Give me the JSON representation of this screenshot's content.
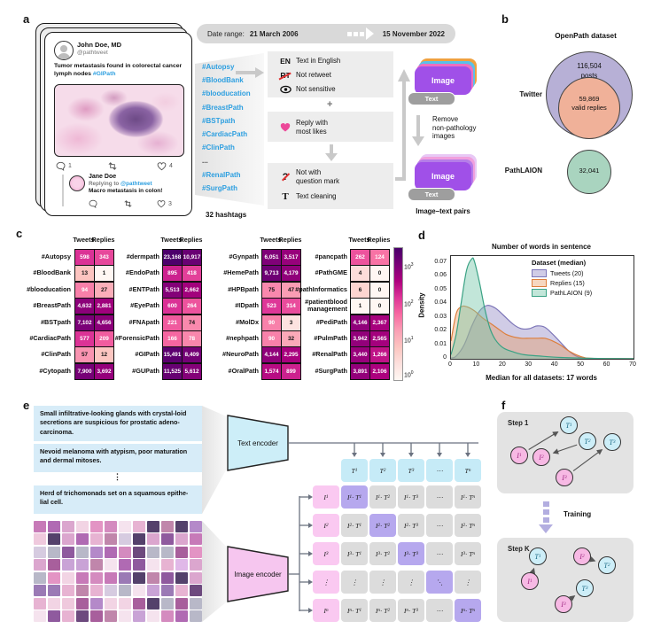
{
  "panels": {
    "a": "a",
    "b": "b",
    "c": "c",
    "d": "d",
    "e": "e",
    "f": "f"
  },
  "colors": {
    "accent_blue": "#2d9fe0",
    "image_purple": "#a050e8",
    "text_gray": "#9e9e9e",
    "venn_twitter": "#b7b0d6",
    "venn_replies": "#f0b199",
    "venn_pathlaion": "#a9d4bf",
    "heart_pink": "#ec4899",
    "encoder_text": "#cdeef8",
    "encoder_image": "#f6c6ef",
    "matrix_diag": "#b6a8ee",
    "matrix_cell": "#dcdcdc",
    "matrix_col": "#c6ebf7",
    "matrix_row": "#fac9f1"
  },
  "panel_a": {
    "tweet": {
      "name": "John Doe, MD",
      "handle": "@pathtweet",
      "text_before": "Tumor metastasis found in colorectal cancer lymph nodes ",
      "text_tag": "#GIPath",
      "comments": "1",
      "likes": "4"
    },
    "reply": {
      "name": "Jane Doe",
      "replying": "Replying to ",
      "handle": "@pathtweet",
      "text": "Macro metastasis in colon!",
      "likes": "3"
    },
    "date": {
      "label": "Date range:",
      "start": "21 March 2006",
      "end": "15 November 2022"
    },
    "hashtags": [
      "#Autopsy",
      "#BloodBank",
      "#blooducation",
      "#BreastPath",
      "#BSTpath",
      "#CardiacPath",
      "#ClinPath",
      "...",
      "#RenalPath",
      "#SurgPath"
    ],
    "hashtags_caption": "32 hashtags",
    "filter_box1": [
      {
        "icon": "en",
        "label": "Text in English"
      },
      {
        "icon": "rt",
        "label": "Not retweet"
      },
      {
        "icon": "eye",
        "label": "Not sensitive"
      }
    ],
    "plus": "+",
    "filter_box2": {
      "icon": "heart",
      "label": "Reply with\nmost likes"
    },
    "filter_box3": [
      {
        "icon": "q",
        "label": "Not with\nquestion mark"
      },
      {
        "icon": "t",
        "label": "Text cleaning"
      }
    ],
    "stack_image_label": "Image",
    "stack_text_label": "Text",
    "remove_label": "Remove\nnon-pathology\nimages",
    "pairs_label": "Image–text pairs"
  },
  "panel_b": {
    "title": "OpenPath dataset",
    "twitter_label": "Twitter",
    "outer_value": "116,504",
    "outer_unit": "posts",
    "inner_value": "59,869",
    "inner_unit": "valid replies",
    "pathlaion_label": "PathLAION",
    "pathlaion_value": "32,041"
  },
  "panel_c": {
    "header_tweets": "Tweets",
    "header_replies": "Replies",
    "colorbar_exponents": [
      3,
      2,
      1,
      0
    ],
    "tables": [
      [
        {
          "tag": "#Autopsy",
          "tweets": "598",
          "replies": "343"
        },
        {
          "tag": "#BloodBank",
          "tweets": "13",
          "replies": "1"
        },
        {
          "tag": "#blooducation",
          "tweets": "94",
          "replies": "27"
        },
        {
          "tag": "#BreastPath",
          "tweets": "4,632",
          "replies": "2,881"
        },
        {
          "tag": "#BSTpath",
          "tweets": "7,102",
          "replies": "4,656"
        },
        {
          "tag": "#CardiacPath",
          "tweets": "577",
          "replies": "209"
        },
        {
          "tag": "#ClinPath",
          "tweets": "57",
          "replies": "12"
        },
        {
          "tag": "#Cytopath",
          "tweets": "7,900",
          "replies": "3,692"
        }
      ],
      [
        {
          "tag": "#dermpath",
          "tweets": "23,168",
          "replies": "10,917"
        },
        {
          "tag": "#EndoPath",
          "tweets": "895",
          "replies": "418"
        },
        {
          "tag": "#ENTPath",
          "tweets": "5,513",
          "replies": "2,662"
        },
        {
          "tag": "#EyePath",
          "tweets": "600",
          "replies": "264"
        },
        {
          "tag": "#FNApath",
          "tweets": "221",
          "replies": "74"
        },
        {
          "tag": "#ForensicPath",
          "tweets": "166",
          "replies": "78"
        },
        {
          "tag": "#GIPath",
          "tweets": "15,491",
          "replies": "8,409"
        },
        {
          "tag": "#GUPath",
          "tweets": "11,525",
          "replies": "5,612"
        }
      ],
      [
        {
          "tag": "#Gynpath",
          "tweets": "6,051",
          "replies": "3,517"
        },
        {
          "tag": "#HemePath",
          "tweets": "9,713",
          "replies": "4,179"
        },
        {
          "tag": "#HPBpath",
          "tweets": "75",
          "replies": "47"
        },
        {
          "tag": "#IDpath",
          "tweets": "523",
          "replies": "314"
        },
        {
          "tag": "#MolDx",
          "tweets": "90",
          "replies": "3"
        },
        {
          "tag": "#nephpath",
          "tweets": "90",
          "replies": "32"
        },
        {
          "tag": "#NeuroPath",
          "tweets": "4,144",
          "replies": "2,295"
        },
        {
          "tag": "#OralPath",
          "tweets": "1,574",
          "replies": "899"
        }
      ],
      [
        {
          "tag": "#pancpath",
          "tweets": "262",
          "replies": "124"
        },
        {
          "tag": "#PathGME",
          "tweets": "4",
          "replies": "0"
        },
        {
          "tag": "#pathInformatics",
          "tweets": "6",
          "replies": "0"
        },
        {
          "tag": "#patientblood management",
          "tweets": "1",
          "replies": "0"
        },
        {
          "tag": "#PediPath",
          "tweets": "4,146",
          "replies": "2,367"
        },
        {
          "tag": "#PulmPath",
          "tweets": "3,942",
          "replies": "2,565"
        },
        {
          "tag": "#RenalPath",
          "tweets": "3,440",
          "replies": "1,266"
        },
        {
          "tag": "#SurgPath",
          "tweets": "3,891",
          "replies": "2,106"
        }
      ]
    ]
  },
  "chart_data": {
    "type": "area",
    "title": "Number of words in sentence",
    "xlabel": "Median for all datasets: 17 words",
    "ylabel": "Density",
    "xlim": [
      0,
      70
    ],
    "ylim": [
      0,
      0.075
    ],
    "xticks": [
      0,
      10,
      20,
      30,
      40,
      50,
      60,
      70
    ],
    "yticks": [
      "0",
      "0.01",
      "0.02",
      "0.03",
      "0.04",
      "0.05",
      "0.06",
      "0.07"
    ],
    "legend_title": "Dataset (median)",
    "legend_position": "upper right",
    "grid": false,
    "series": [
      {
        "name": "Tweets (20)",
        "color": "#7d76b8",
        "fill": "rgba(150,143,200,0.45)",
        "points": [
          [
            0,
            0.0005
          ],
          [
            2,
            0.002
          ],
          [
            5,
            0.01
          ],
          [
            8,
            0.024
          ],
          [
            11,
            0.035
          ],
          [
            14,
            0.039
          ],
          [
            17,
            0.037
          ],
          [
            20,
            0.032
          ],
          [
            24,
            0.025
          ],
          [
            27,
            0.022
          ],
          [
            30,
            0.022
          ],
          [
            33,
            0.024
          ],
          [
            36,
            0.023
          ],
          [
            39,
            0.018
          ],
          [
            42,
            0.012
          ],
          [
            45,
            0.006
          ],
          [
            48,
            0.002
          ],
          [
            51,
            0.0005
          ],
          [
            55,
            0.0002
          ],
          [
            70,
            0.0001
          ]
        ]
      },
      {
        "name": "Replies (15)",
        "color": "#dd7e3c",
        "fill": "rgba(232,150,90,0.38)",
        "points": [
          [
            0,
            0.013
          ],
          [
            2,
            0.033
          ],
          [
            4,
            0.038
          ],
          [
            6,
            0.038
          ],
          [
            9,
            0.035
          ],
          [
            12,
            0.03
          ],
          [
            15,
            0.026
          ],
          [
            18,
            0.022
          ],
          [
            21,
            0.018
          ],
          [
            24,
            0.016
          ],
          [
            27,
            0.015
          ],
          [
            30,
            0.015
          ],
          [
            33,
            0.015
          ],
          [
            36,
            0.015
          ],
          [
            39,
            0.013
          ],
          [
            42,
            0.01
          ],
          [
            45,
            0.006
          ],
          [
            48,
            0.003
          ],
          [
            51,
            0.001
          ],
          [
            54,
            0.0003
          ],
          [
            70,
            0.0001
          ]
        ]
      },
      {
        "name": "PathLAION (9)",
        "color": "#3aa284",
        "fill": "rgba(120,200,170,0.45)",
        "points": [
          [
            0,
            0.003
          ],
          [
            2,
            0.018
          ],
          [
            4,
            0.042
          ],
          [
            6,
            0.065
          ],
          [
            8,
            0.073
          ],
          [
            9,
            0.071
          ],
          [
            11,
            0.055
          ],
          [
            13,
            0.036
          ],
          [
            15,
            0.022
          ],
          [
            17,
            0.014
          ],
          [
            20,
            0.008
          ],
          [
            24,
            0.005
          ],
          [
            28,
            0.003
          ],
          [
            34,
            0.002
          ],
          [
            42,
            0.001
          ],
          [
            50,
            0.0005
          ],
          [
            60,
            0.0002
          ],
          [
            70,
            0.0001
          ]
        ]
      }
    ]
  },
  "panel_e": {
    "captions": [
      "Small infiltrative-looking glands with crystal-loid secretions are suspicious for prostatic adeno-carcinoma.",
      "Nevoid melanoma with atypism, poor maturation and dermal mitoses.",
      "Herd of trichomonads set on a squamous epithe-lial cell."
    ],
    "dots": "⋮",
    "text_encoder_label": "Text encoder",
    "image_encoder_label": "Image encoder",
    "matrix": {
      "letter_i": "I",
      "letter_t": "T",
      "dot": "·",
      "cols": [
        "1",
        "2",
        "3",
        "⋯",
        "n"
      ],
      "rows": [
        "1",
        "2",
        "3",
        "⋮",
        "n"
      ]
    }
  },
  "panel_f": {
    "step1_label": "Step 1",
    "stepk_label": "Step K",
    "training_label": "Training",
    "letter_i": "I",
    "letter_t": "T"
  }
}
